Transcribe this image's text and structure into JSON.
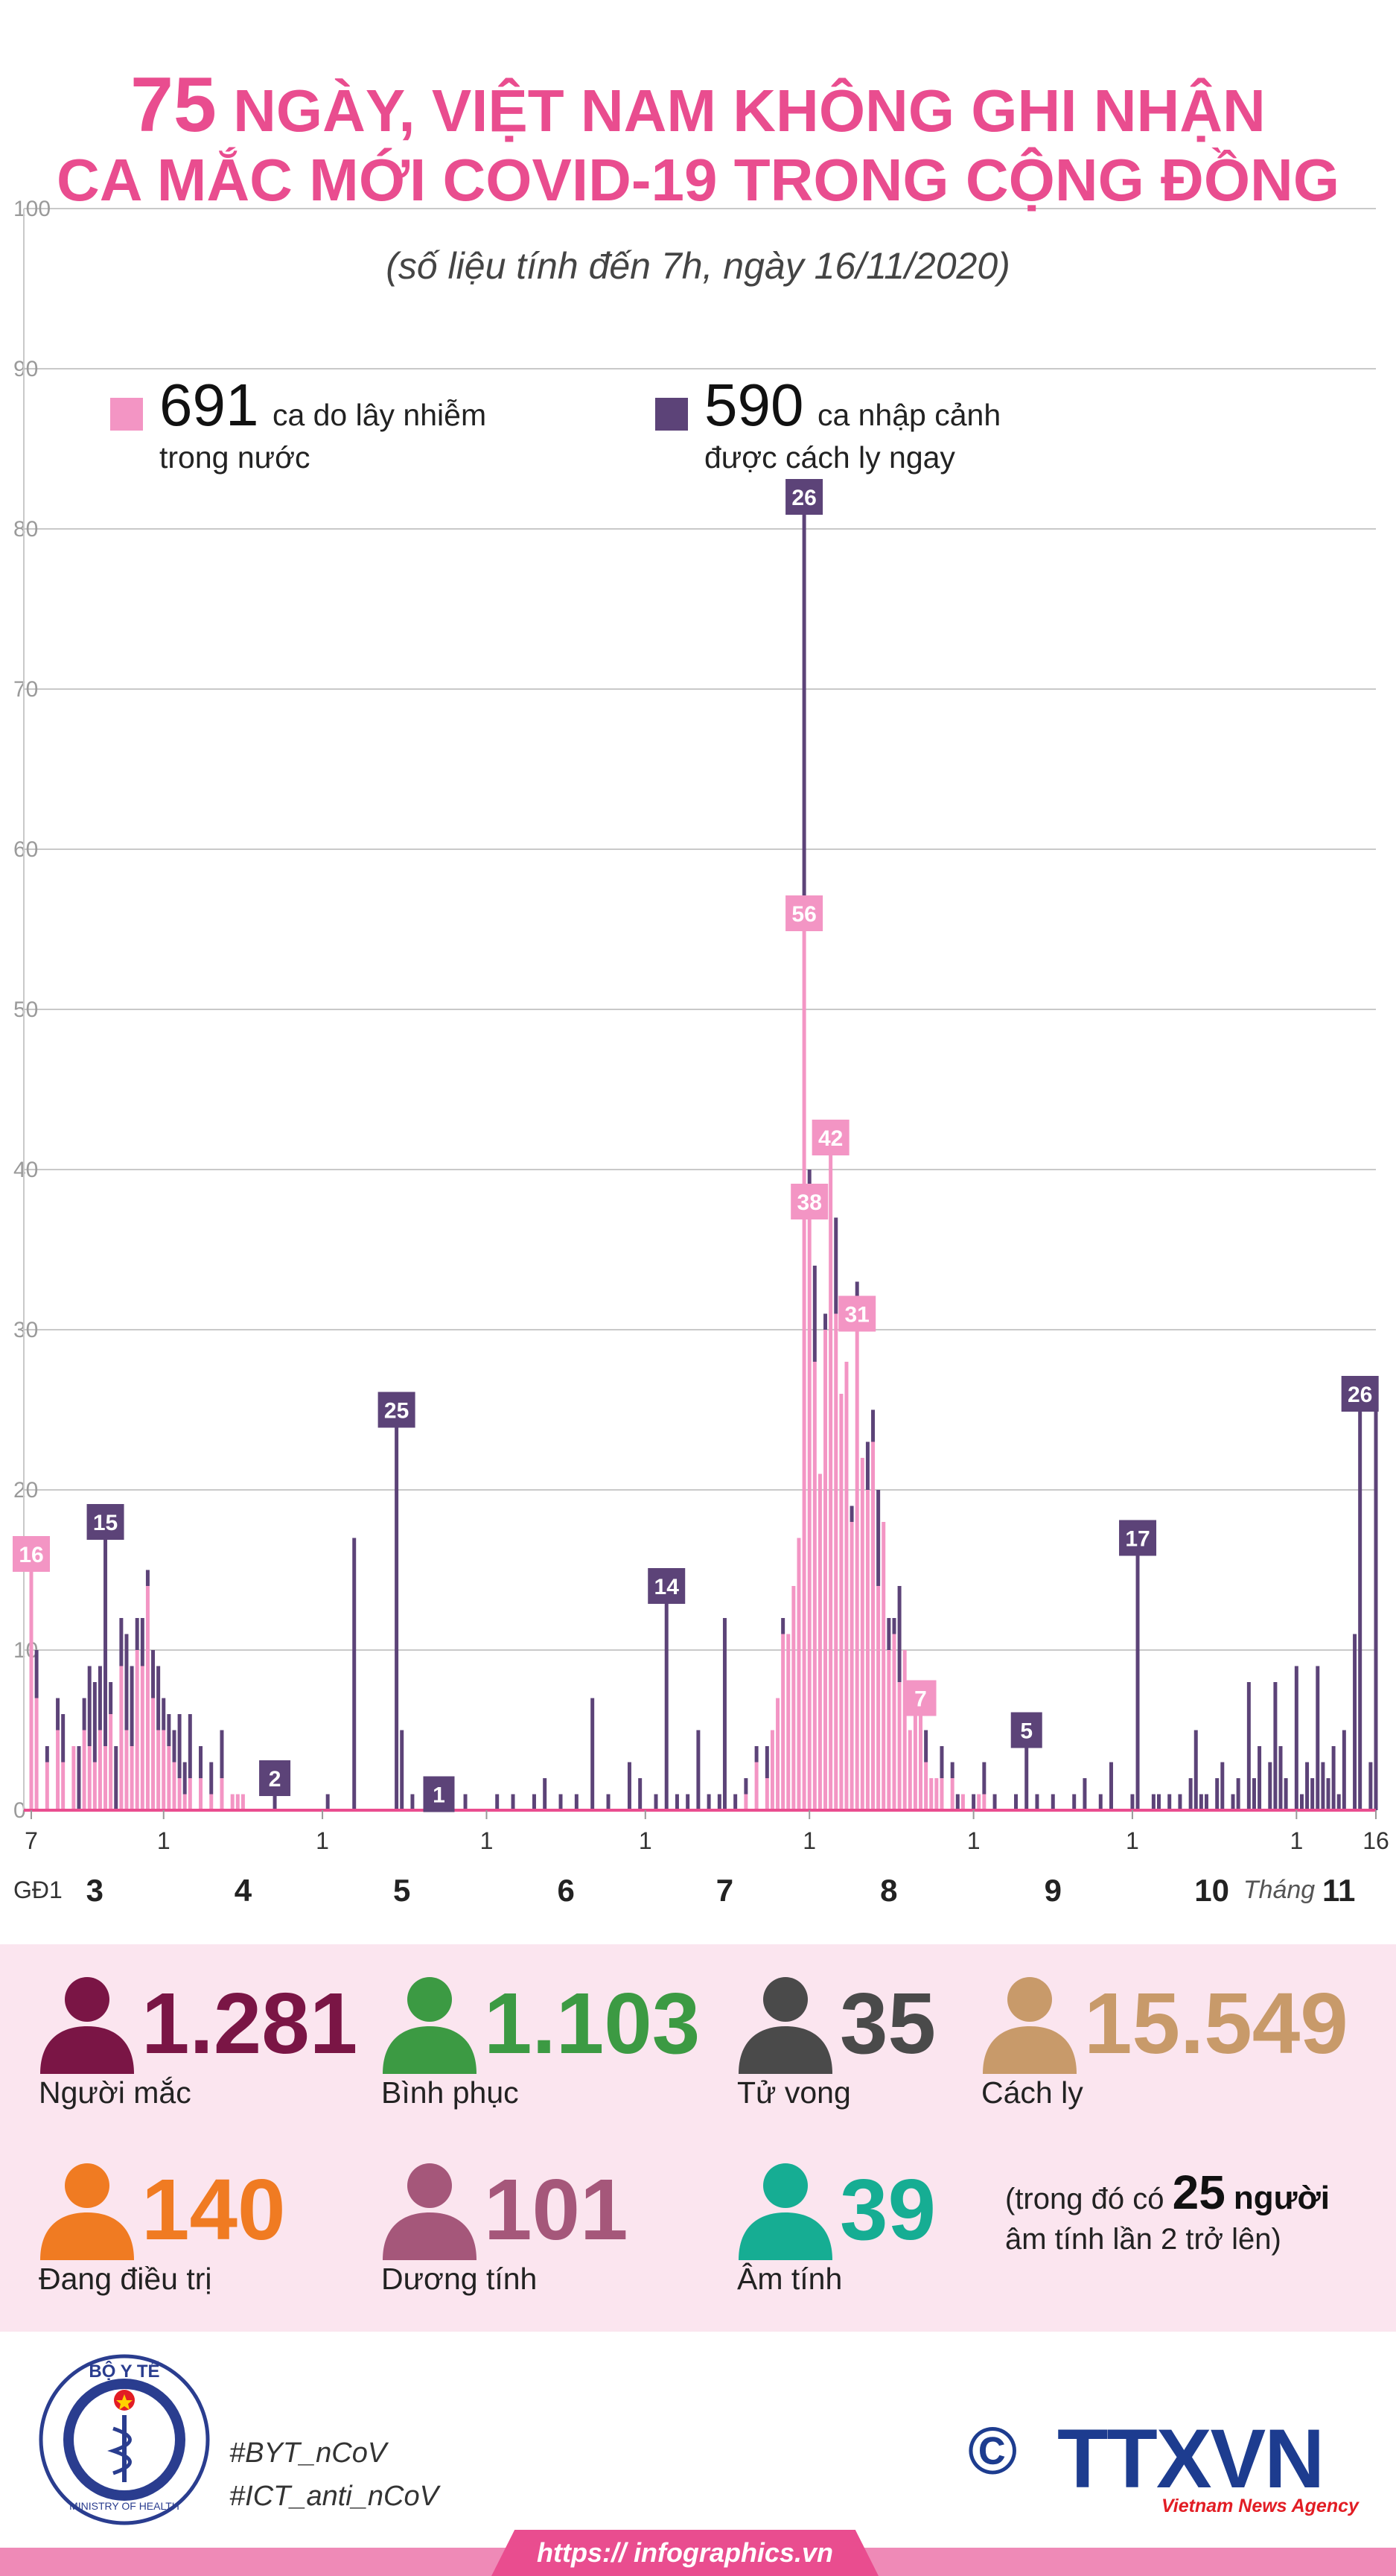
{
  "title": {
    "number": "75",
    "line1_rest": "NGÀY, VIỆT NAM KHÔNG GHI NHẬN",
    "line2": "CA MẮC MỚI COVID-19 TRONG CỘNG ĐỒNG"
  },
  "subtitle": "(số liệu tính đến 7h, ngày 16/11/2020)",
  "legend": {
    "domestic": {
      "value": "691",
      "label_1": "ca do lây nhiễm",
      "label_2": "trong nước",
      "color": "#f395c4"
    },
    "imported": {
      "value": "590",
      "label_1": "ca nhập cảnh",
      "label_2": "được cách ly ngay",
      "color": "#5c4378"
    }
  },
  "chart_data": {
    "type": "bar",
    "stacked": true,
    "ylim": [
      0,
      100
    ],
    "yticks": [
      0,
      10,
      20,
      30,
      40,
      50,
      60,
      70,
      80,
      90,
      100
    ],
    "x_start": "2020-03-07",
    "x_end": "2020-11-16",
    "x_tick_day_labels": [
      {
        "date": "2020-03-07",
        "label": "7"
      },
      {
        "date": "2020-04-01",
        "label": "1"
      },
      {
        "date": "2020-05-01",
        "label": "1"
      },
      {
        "date": "2020-06-01",
        "label": "1"
      },
      {
        "date": "2020-07-01",
        "label": "1"
      },
      {
        "date": "2020-08-01",
        "label": "1"
      },
      {
        "date": "2020-09-01",
        "label": "1"
      },
      {
        "date": "2020-10-01",
        "label": "1"
      },
      {
        "date": "2020-11-01",
        "label": "1"
      },
      {
        "date": "2020-11-16",
        "label": "16"
      }
    ],
    "month_labels": [
      {
        "date": "2020-03-19",
        "label": "3"
      },
      {
        "date": "2020-04-16",
        "label": "4"
      },
      {
        "date": "2020-05-16",
        "label": "5"
      },
      {
        "date": "2020-06-16",
        "label": "6"
      },
      {
        "date": "2020-07-16",
        "label": "7"
      },
      {
        "date": "2020-08-16",
        "label": "8"
      },
      {
        "date": "2020-09-16",
        "label": "9"
      },
      {
        "date": "2020-10-16",
        "label": "10"
      },
      {
        "date": "2020-11-09",
        "label": "11"
      }
    ],
    "phase_label": "GĐ1",
    "month_word": "Tháng",
    "series": [
      {
        "name": "ca do lây nhiễm trong nước",
        "color": "#f395c4",
        "points": [
          [
            "2020-03-07",
            16
          ],
          [
            "2020-03-08",
            7
          ],
          [
            "2020-03-10",
            3
          ],
          [
            "2020-03-12",
            5
          ],
          [
            "2020-03-13",
            3
          ],
          [
            "2020-03-15",
            4
          ],
          [
            "2020-03-17",
            5
          ],
          [
            "2020-03-18",
            4
          ],
          [
            "2020-03-19",
            3
          ],
          [
            "2020-03-20",
            5
          ],
          [
            "2020-03-21",
            4
          ],
          [
            "2020-03-22",
            6
          ],
          [
            "2020-03-24",
            9
          ],
          [
            "2020-03-25",
            5
          ],
          [
            "2020-03-26",
            4
          ],
          [
            "2020-03-27",
            10
          ],
          [
            "2020-03-28",
            9
          ],
          [
            "2020-03-29",
            14
          ],
          [
            "2020-03-30",
            7
          ],
          [
            "2020-03-31",
            5
          ],
          [
            "2020-04-01",
            5
          ],
          [
            "2020-04-02",
            4
          ],
          [
            "2020-04-03",
            3
          ],
          [
            "2020-04-04",
            2
          ],
          [
            "2020-04-05",
            1
          ],
          [
            "2020-04-06",
            2
          ],
          [
            "2020-04-08",
            2
          ],
          [
            "2020-04-10",
            1
          ],
          [
            "2020-04-12",
            2
          ],
          [
            "2020-04-14",
            1
          ],
          [
            "2020-04-15",
            1
          ],
          [
            "2020-04-16",
            1
          ],
          [
            "2020-07-20",
            1
          ],
          [
            "2020-07-22",
            3
          ],
          [
            "2020-07-24",
            2
          ],
          [
            "2020-07-25",
            5
          ],
          [
            "2020-07-26",
            7
          ],
          [
            "2020-07-27",
            11
          ],
          [
            "2020-07-28",
            11
          ],
          [
            "2020-07-29",
            14
          ],
          [
            "2020-07-30",
            17
          ],
          [
            "2020-07-31",
            56
          ],
          [
            "2020-08-01",
            38
          ],
          [
            "2020-08-02",
            28
          ],
          [
            "2020-08-03",
            21
          ],
          [
            "2020-08-04",
            30
          ],
          [
            "2020-08-05",
            42
          ],
          [
            "2020-08-06",
            31
          ],
          [
            "2020-08-07",
            26
          ],
          [
            "2020-08-08",
            28
          ],
          [
            "2020-08-09",
            18
          ],
          [
            "2020-08-10",
            31
          ],
          [
            "2020-08-11",
            22
          ],
          [
            "2020-08-12",
            20
          ],
          [
            "2020-08-13",
            23
          ],
          [
            "2020-08-14",
            14
          ],
          [
            "2020-08-15",
            18
          ],
          [
            "2020-08-16",
            10
          ],
          [
            "2020-08-17",
            11
          ],
          [
            "2020-08-18",
            8
          ],
          [
            "2020-08-19",
            10
          ],
          [
            "2020-08-20",
            5
          ],
          [
            "2020-08-21",
            6
          ],
          [
            "2020-08-22",
            7
          ],
          [
            "2020-08-23",
            3
          ],
          [
            "2020-08-24",
            2
          ],
          [
            "2020-08-25",
            2
          ],
          [
            "2020-08-26",
            2
          ],
          [
            "2020-08-28",
            2
          ],
          [
            "2020-08-30",
            1
          ],
          [
            "2020-09-02",
            1
          ],
          [
            "2020-09-03",
            1
          ]
        ]
      },
      {
        "name": "ca nhập cảnh được cách ly ngay",
        "color": "#5c4378",
        "points": [
          [
            "2020-03-08",
            3
          ],
          [
            "2020-03-10",
            1
          ],
          [
            "2020-03-12",
            2
          ],
          [
            "2020-03-13",
            3
          ],
          [
            "2020-03-16",
            4
          ],
          [
            "2020-03-17",
            2
          ],
          [
            "2020-03-18",
            5
          ],
          [
            "2020-03-19",
            5
          ],
          [
            "2020-03-20",
            4
          ],
          [
            "2020-03-21",
            15
          ],
          [
            "2020-03-22",
            2
          ],
          [
            "2020-03-23",
            4
          ],
          [
            "2020-03-24",
            3
          ],
          [
            "2020-03-25",
            6
          ],
          [
            "2020-03-26",
            5
          ],
          [
            "2020-03-27",
            2
          ],
          [
            "2020-03-28",
            3
          ],
          [
            "2020-03-29",
            1
          ],
          [
            "2020-03-30",
            3
          ],
          [
            "2020-03-31",
            4
          ],
          [
            "2020-04-01",
            2
          ],
          [
            "2020-04-02",
            2
          ],
          [
            "2020-04-03",
            2
          ],
          [
            "2020-04-04",
            4
          ],
          [
            "2020-04-05",
            2
          ],
          [
            "2020-04-06",
            4
          ],
          [
            "2020-04-08",
            2
          ],
          [
            "2020-04-10",
            2
          ],
          [
            "2020-04-12",
            3
          ],
          [
            "2020-04-22",
            2
          ],
          [
            "2020-05-02",
            1
          ],
          [
            "2020-05-07",
            17
          ],
          [
            "2020-05-15",
            25
          ],
          [
            "2020-05-16",
            5
          ],
          [
            "2020-05-18",
            1
          ],
          [
            "2020-05-22",
            1
          ],
          [
            "2020-05-23",
            1
          ],
          [
            "2020-05-28",
            1
          ],
          [
            "2020-06-03",
            1
          ],
          [
            "2020-06-06",
            1
          ],
          [
            "2020-06-10",
            1
          ],
          [
            "2020-06-12",
            2
          ],
          [
            "2020-06-15",
            1
          ],
          [
            "2020-06-18",
            1
          ],
          [
            "2020-06-21",
            7
          ],
          [
            "2020-06-24",
            1
          ],
          [
            "2020-06-28",
            3
          ],
          [
            "2020-06-30",
            2
          ],
          [
            "2020-07-03",
            1
          ],
          [
            "2020-07-05",
            14
          ],
          [
            "2020-07-07",
            1
          ],
          [
            "2020-07-09",
            1
          ],
          [
            "2020-07-11",
            5
          ],
          [
            "2020-07-13",
            1
          ],
          [
            "2020-07-15",
            1
          ],
          [
            "2020-07-16",
            12
          ],
          [
            "2020-07-18",
            1
          ],
          [
            "2020-07-20",
            1
          ],
          [
            "2020-07-22",
            1
          ],
          [
            "2020-07-24",
            2
          ],
          [
            "2020-07-27",
            1
          ],
          [
            "2020-07-31",
            26
          ],
          [
            "2020-08-01",
            2
          ],
          [
            "2020-08-02",
            6
          ],
          [
            "2020-08-04",
            1
          ],
          [
            "2020-08-05",
            1
          ],
          [
            "2020-08-06",
            6
          ],
          [
            "2020-08-09",
            1
          ],
          [
            "2020-08-10",
            2
          ],
          [
            "2020-08-12",
            3
          ],
          [
            "2020-08-13",
            2
          ],
          [
            "2020-08-14",
            6
          ],
          [
            "2020-08-16",
            2
          ],
          [
            "2020-08-17",
            1
          ],
          [
            "2020-08-18",
            6
          ],
          [
            "2020-08-21",
            2
          ],
          [
            "2020-08-23",
            2
          ],
          [
            "2020-08-26",
            2
          ],
          [
            "2020-08-28",
            1
          ],
          [
            "2020-08-29",
            1
          ],
          [
            "2020-09-01",
            1
          ],
          [
            "2020-09-03",
            2
          ],
          [
            "2020-09-05",
            1
          ],
          [
            "2020-09-09",
            1
          ],
          [
            "2020-09-11",
            5
          ],
          [
            "2020-09-13",
            1
          ],
          [
            "2020-09-16",
            1
          ],
          [
            "2020-09-20",
            1
          ],
          [
            "2020-09-22",
            2
          ],
          [
            "2020-09-25",
            1
          ],
          [
            "2020-09-27",
            3
          ],
          [
            "2020-10-01",
            1
          ],
          [
            "2020-10-02",
            17
          ],
          [
            "2020-10-05",
            1
          ],
          [
            "2020-10-06",
            1
          ],
          [
            "2020-10-08",
            1
          ],
          [
            "2020-10-10",
            1
          ],
          [
            "2020-10-12",
            2
          ],
          [
            "2020-10-13",
            5
          ],
          [
            "2020-10-14",
            1
          ],
          [
            "2020-10-15",
            1
          ],
          [
            "2020-10-17",
            2
          ],
          [
            "2020-10-18",
            3
          ],
          [
            "2020-10-20",
            1
          ],
          [
            "2020-10-21",
            2
          ],
          [
            "2020-10-23",
            8
          ],
          [
            "2020-10-24",
            2
          ],
          [
            "2020-10-25",
            4
          ],
          [
            "2020-10-27",
            3
          ],
          [
            "2020-10-28",
            8
          ],
          [
            "2020-10-29",
            4
          ],
          [
            "2020-10-30",
            2
          ],
          [
            "2020-11-01",
            9
          ],
          [
            "2020-11-02",
            1
          ],
          [
            "2020-11-03",
            3
          ],
          [
            "2020-11-04",
            2
          ],
          [
            "2020-11-05",
            9
          ],
          [
            "2020-11-06",
            3
          ],
          [
            "2020-11-07",
            2
          ],
          [
            "2020-11-08",
            4
          ],
          [
            "2020-11-09",
            1
          ],
          [
            "2020-11-10",
            5
          ],
          [
            "2020-11-12",
            11
          ],
          [
            "2020-11-13",
            26
          ],
          [
            "2020-11-15",
            3
          ],
          [
            "2020-11-16",
            25
          ]
        ]
      }
    ],
    "annotations": [
      {
        "date": "2020-03-07",
        "value": 16,
        "label": "16",
        "series": 0
      },
      {
        "date": "2020-03-21",
        "value": 18,
        "label": "15",
        "series": 1
      },
      {
        "date": "2020-04-22",
        "value": 2,
        "label": "2",
        "series": 1
      },
      {
        "date": "2020-05-15",
        "value": 25,
        "label": "25",
        "series": 1
      },
      {
        "date": "2020-05-23",
        "value": 1,
        "label": "1",
        "series": 1
      },
      {
        "date": "2020-07-05",
        "value": 14,
        "label": "14",
        "series": 1
      },
      {
        "date": "2020-07-31",
        "value": 82,
        "label": "26",
        "series": 1
      },
      {
        "date": "2020-07-31",
        "value": 56,
        "label": "56",
        "series": 0
      },
      {
        "date": "2020-08-01",
        "value": 38,
        "label": "38",
        "series": 0
      },
      {
        "date": "2020-08-05",
        "value": 42,
        "label": "42",
        "series": 0
      },
      {
        "date": "2020-08-10",
        "value": 31,
        "label": "31",
        "series": 0
      },
      {
        "date": "2020-08-22",
        "value": 7,
        "label": "7",
        "series": 0
      },
      {
        "date": "2020-09-11",
        "value": 5,
        "label": "5",
        "series": 1
      },
      {
        "date": "2020-10-02",
        "value": 17,
        "label": "17",
        "series": 1
      },
      {
        "date": "2020-11-13",
        "value": 26,
        "label": "26",
        "series": 1
      }
    ]
  },
  "stats": {
    "infected": {
      "value": "1.281",
      "label": "Người mắc",
      "color": "#7a1545"
    },
    "recovered": {
      "value": "1.103",
      "label": "Bình phục",
      "color": "#3c9a43"
    },
    "deaths": {
      "value": "35",
      "label": "Tử vong",
      "color": "#4a4a4a"
    },
    "isolated": {
      "value": "15.549",
      "label": "Cách ly",
      "color": "#c89a6a"
    },
    "treating": {
      "value": "140",
      "label": "Đang điều trị",
      "color": "#f07b22"
    },
    "positive": {
      "value": "101",
      "label": "Dương tính",
      "color": "#a5577a"
    },
    "negative": {
      "value": "39",
      "label": "Âm tính",
      "color": "#16ad93"
    },
    "note": {
      "prefix": "(trong đó có",
      "number": "25",
      "suffix": "người",
      "line2": "âm tính lần 2 trở lên)"
    }
  },
  "footer": {
    "logo_top": "BỘ Y TẾ",
    "logo_bottom": "MINISTRY OF HEALTH",
    "hashtag_1": "#BYT_nCoV",
    "hashtag_2": "#ICT_anti_nCoV",
    "copyright": "©",
    "agency": "TTXVN",
    "agency_sub": "Vietnam News Agency",
    "url": "https:// infographics.vn"
  }
}
